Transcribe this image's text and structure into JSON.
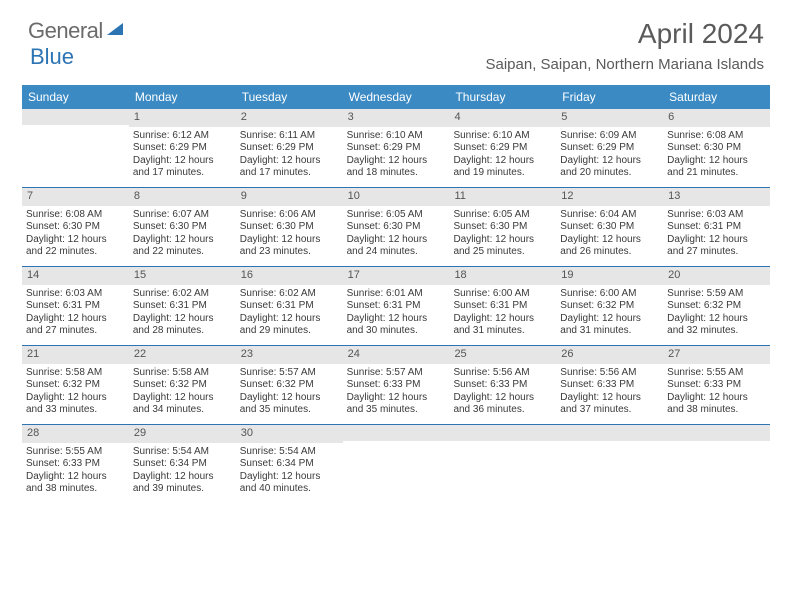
{
  "logo": {
    "word1": "General",
    "word2": "Blue"
  },
  "header": {
    "month_title": "April 2024",
    "location": "Saipan, Saipan, Northern Mariana Islands"
  },
  "colors": {
    "header_bar": "#3b8ac4",
    "week_divider": "#2d74b5",
    "daynum_bg": "#e6e6e6",
    "logo_blue": "#2d74b5",
    "text_gray": "#5a5a5a"
  },
  "day_headers": [
    "Sunday",
    "Monday",
    "Tuesday",
    "Wednesday",
    "Thursday",
    "Friday",
    "Saturday"
  ],
  "weeks": [
    [
      {
        "blank": true
      },
      {
        "n": "1",
        "sunrise": "6:12 AM",
        "sunset": "6:29 PM",
        "daylight": "12 hours and 17 minutes."
      },
      {
        "n": "2",
        "sunrise": "6:11 AM",
        "sunset": "6:29 PM",
        "daylight": "12 hours and 17 minutes."
      },
      {
        "n": "3",
        "sunrise": "6:10 AM",
        "sunset": "6:29 PM",
        "daylight": "12 hours and 18 minutes."
      },
      {
        "n": "4",
        "sunrise": "6:10 AM",
        "sunset": "6:29 PM",
        "daylight": "12 hours and 19 minutes."
      },
      {
        "n": "5",
        "sunrise": "6:09 AM",
        "sunset": "6:29 PM",
        "daylight": "12 hours and 20 minutes."
      },
      {
        "n": "6",
        "sunrise": "6:08 AM",
        "sunset": "6:30 PM",
        "daylight": "12 hours and 21 minutes."
      }
    ],
    [
      {
        "n": "7",
        "sunrise": "6:08 AM",
        "sunset": "6:30 PM",
        "daylight": "12 hours and 22 minutes."
      },
      {
        "n": "8",
        "sunrise": "6:07 AM",
        "sunset": "6:30 PM",
        "daylight": "12 hours and 22 minutes."
      },
      {
        "n": "9",
        "sunrise": "6:06 AM",
        "sunset": "6:30 PM",
        "daylight": "12 hours and 23 minutes."
      },
      {
        "n": "10",
        "sunrise": "6:05 AM",
        "sunset": "6:30 PM",
        "daylight": "12 hours and 24 minutes."
      },
      {
        "n": "11",
        "sunrise": "6:05 AM",
        "sunset": "6:30 PM",
        "daylight": "12 hours and 25 minutes."
      },
      {
        "n": "12",
        "sunrise": "6:04 AM",
        "sunset": "6:30 PM",
        "daylight": "12 hours and 26 minutes."
      },
      {
        "n": "13",
        "sunrise": "6:03 AM",
        "sunset": "6:31 PM",
        "daylight": "12 hours and 27 minutes."
      }
    ],
    [
      {
        "n": "14",
        "sunrise": "6:03 AM",
        "sunset": "6:31 PM",
        "daylight": "12 hours and 27 minutes."
      },
      {
        "n": "15",
        "sunrise": "6:02 AM",
        "sunset": "6:31 PM",
        "daylight": "12 hours and 28 minutes."
      },
      {
        "n": "16",
        "sunrise": "6:02 AM",
        "sunset": "6:31 PM",
        "daylight": "12 hours and 29 minutes."
      },
      {
        "n": "17",
        "sunrise": "6:01 AM",
        "sunset": "6:31 PM",
        "daylight": "12 hours and 30 minutes."
      },
      {
        "n": "18",
        "sunrise": "6:00 AM",
        "sunset": "6:31 PM",
        "daylight": "12 hours and 31 minutes."
      },
      {
        "n": "19",
        "sunrise": "6:00 AM",
        "sunset": "6:32 PM",
        "daylight": "12 hours and 31 minutes."
      },
      {
        "n": "20",
        "sunrise": "5:59 AM",
        "sunset": "6:32 PM",
        "daylight": "12 hours and 32 minutes."
      }
    ],
    [
      {
        "n": "21",
        "sunrise": "5:58 AM",
        "sunset": "6:32 PM",
        "daylight": "12 hours and 33 minutes."
      },
      {
        "n": "22",
        "sunrise": "5:58 AM",
        "sunset": "6:32 PM",
        "daylight": "12 hours and 34 minutes."
      },
      {
        "n": "23",
        "sunrise": "5:57 AM",
        "sunset": "6:32 PM",
        "daylight": "12 hours and 35 minutes."
      },
      {
        "n": "24",
        "sunrise": "5:57 AM",
        "sunset": "6:33 PM",
        "daylight": "12 hours and 35 minutes."
      },
      {
        "n": "25",
        "sunrise": "5:56 AM",
        "sunset": "6:33 PM",
        "daylight": "12 hours and 36 minutes."
      },
      {
        "n": "26",
        "sunrise": "5:56 AM",
        "sunset": "6:33 PM",
        "daylight": "12 hours and 37 minutes."
      },
      {
        "n": "27",
        "sunrise": "5:55 AM",
        "sunset": "6:33 PM",
        "daylight": "12 hours and 38 minutes."
      }
    ],
    [
      {
        "n": "28",
        "sunrise": "5:55 AM",
        "sunset": "6:33 PM",
        "daylight": "12 hours and 38 minutes."
      },
      {
        "n": "29",
        "sunrise": "5:54 AM",
        "sunset": "6:34 PM",
        "daylight": "12 hours and 39 minutes."
      },
      {
        "n": "30",
        "sunrise": "5:54 AM",
        "sunset": "6:34 PM",
        "daylight": "12 hours and 40 minutes."
      },
      {
        "blank": true
      },
      {
        "blank": true
      },
      {
        "blank": true
      },
      {
        "blank": true
      }
    ]
  ],
  "labels": {
    "sunrise": "Sunrise:",
    "sunset": "Sunset:",
    "daylight": "Daylight:"
  }
}
